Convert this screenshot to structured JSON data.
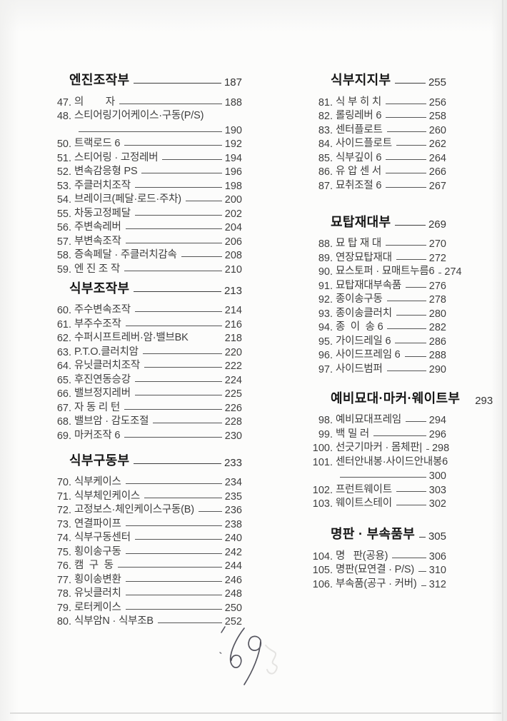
{
  "page": {
    "handwritten_number": "69"
  },
  "toc": {
    "columns": [
      {
        "sections": [
          {
            "title": "엔진조작부",
            "page": "187",
            "items": [
              {
                "num": "47.",
                "label": "의        자",
                "page": "188"
              },
              {
                "num": "48.",
                "label": "스티어링기어케이스·구동(P/S)",
                "page": "",
                "leader": "none"
              },
              {
                "cont": true,
                "num": "",
                "label": "",
                "page": "190"
              },
              {
                "num": "50.",
                "label": "트랙로드 6",
                "page": "192"
              },
              {
                "num": "51.",
                "label": "스티어링 · 고정레버",
                "page": "194"
              },
              {
                "num": "52.",
                "label": "변속감응형 PS",
                "page": "196"
              },
              {
                "num": "53.",
                "label": "주클러치조작",
                "page": "198"
              },
              {
                "num": "54.",
                "label": "브레이크(페달·로드·주차)",
                "page": "200"
              },
              {
                "num": "55.",
                "label": "차동고정페달",
                "page": "202"
              },
              {
                "num": "56.",
                "label": "주변속레버",
                "page": "204"
              },
              {
                "num": "57.",
                "label": "부변속조작",
                "page": "206"
              },
              {
                "num": "58.",
                "label": "증속페달 · 주클러치감속",
                "page": "208"
              },
              {
                "num": "59.",
                "label": "엔 진 조 작",
                "page": "210"
              }
            ]
          },
          {
            "title": "식부조작부",
            "page": "213",
            "items": [
              {
                "num": "60.",
                "label": "주수변속조작",
                "page": "214"
              },
              {
                "num": "61.",
                "label": "부주수조작",
                "page": "216"
              },
              {
                "num": "62.",
                "label": "수퍼시프트레버·암·밸브BK",
                "page": "218",
                "leader": "none"
              },
              {
                "num": "63.",
                "label": "P.T.O.클러치암",
                "page": "220"
              },
              {
                "num": "64.",
                "label": "유닛클러치조작",
                "page": "222"
              },
              {
                "num": "65.",
                "label": "후진연동승강",
                "page": "224"
              },
              {
                "num": "66.",
                "label": "밸브정지레버",
                "page": "225"
              },
              {
                "num": "67.",
                "label": "자 동 리 턴",
                "page": "226"
              },
              {
                "num": "68.",
                "label": "밸브암 · 감도조절",
                "page": "228"
              },
              {
                "num": "69.",
                "label": "마커조작 6",
                "page": "230"
              }
            ]
          },
          {
            "title": "식부구동부",
            "page": "233",
            "items": [
              {
                "num": "70.",
                "label": "식부케이스",
                "page": "234"
              },
              {
                "num": "71.",
                "label": "식부체인케이스",
                "page": "235"
              },
              {
                "num": "72.",
                "label": "고정보스·체인케이스구동(B)",
                "page": "236"
              },
              {
                "num": "73.",
                "label": "연결파이프",
                "page": "238"
              },
              {
                "num": "74.",
                "label": "식부구동센터",
                "page": "240"
              },
              {
                "num": "75.",
                "label": "횡이송구동",
                "page": "242"
              },
              {
                "num": "76.",
                "label": "캠  구  동",
                "page": "244"
              },
              {
                "num": "77.",
                "label": "횡이송변환",
                "page": "246"
              },
              {
                "num": "78.",
                "label": "유닛클러치",
                "page": "248"
              },
              {
                "num": "79.",
                "label": "로터케이스",
                "page": "250"
              },
              {
                "num": "80.",
                "label": "식부암N · 식부조B",
                "page": "252"
              }
            ]
          }
        ]
      },
      {
        "sections": [
          {
            "title": "식부지지부",
            "page": "255",
            "items": [
              {
                "num": "81.",
                "label": "식 부 히 치",
                "page": "256"
              },
              {
                "num": "82.",
                "label": "롤링레버 6",
                "page": "258"
              },
              {
                "num": "83.",
                "label": "센터플로트",
                "page": "260"
              },
              {
                "num": "84.",
                "label": "사이드플로트",
                "page": "262"
              },
              {
                "num": "85.",
                "label": "식부깊이 6",
                "page": "264"
              },
              {
                "num": "86.",
                "label": "유 압 센 서",
                "page": "266"
              },
              {
                "num": "87.",
                "label": "묘취조절 6",
                "page": "267"
              }
            ]
          },
          {
            "title": "묘탑재대부",
            "page": "269",
            "items": [
              {
                "num": "88.",
                "label": "묘 탑 재 대",
                "page": "270"
              },
              {
                "num": "89.",
                "label": "연장묘탑재대",
                "page": "272"
              },
              {
                "num": "90.",
                "label": "묘스토퍼 · 묘매트누름6",
                "page": "274"
              },
              {
                "num": "91.",
                "label": "묘탑재대부속품",
                "page": "276"
              },
              {
                "num": "92.",
                "label": "종이송구동",
                "page": "278"
              },
              {
                "num": "93.",
                "label": "종이송클러치",
                "page": "280"
              },
              {
                "num": "94.",
                "label": "종  이  송 6",
                "page": "282"
              },
              {
                "num": "95.",
                "label": "가이드레일 6",
                "page": "286"
              },
              {
                "num": "96.",
                "label": "사이드프레임 6",
                "page": "288"
              },
              {
                "num": "97.",
                "label": "사이드범퍼",
                "page": "290"
              }
            ]
          },
          {
            "title": "예비묘대·마커·웨이트부",
            "page": "293",
            "header_leader": false,
            "items": [
              {
                "num": "98.",
                "label": "예비묘대프레임",
                "page": "294"
              },
              {
                "num": "99.",
                "label": "백 밀 러",
                "page": "296"
              },
              {
                "num": "100.",
                "label": "선긋기마커 · 몸체판|",
                "page": "298"
              },
              {
                "num": "101.",
                "label": "센터안내봉·사이드안내봉6",
                "page": "",
                "leader": "none"
              },
              {
                "cont": true,
                "num": "",
                "label": "",
                "page": "300"
              },
              {
                "num": "102.",
                "label": "프런트웨이트",
                "page": "303"
              },
              {
                "num": "103.",
                "label": "웨이트스테이",
                "page": "302"
              }
            ]
          },
          {
            "title": "명판 · 부속품부",
            "page": "305",
            "items": [
              {
                "num": "104.",
                "label": "명   판(공용)",
                "page": "306"
              },
              {
                "num": "105.",
                "label": "명판(묘연결 · P/S)",
                "page": "310"
              },
              {
                "num": "106.",
                "label": "부속품(공구 · 커버)",
                "page": "312"
              }
            ]
          }
        ]
      }
    ]
  }
}
